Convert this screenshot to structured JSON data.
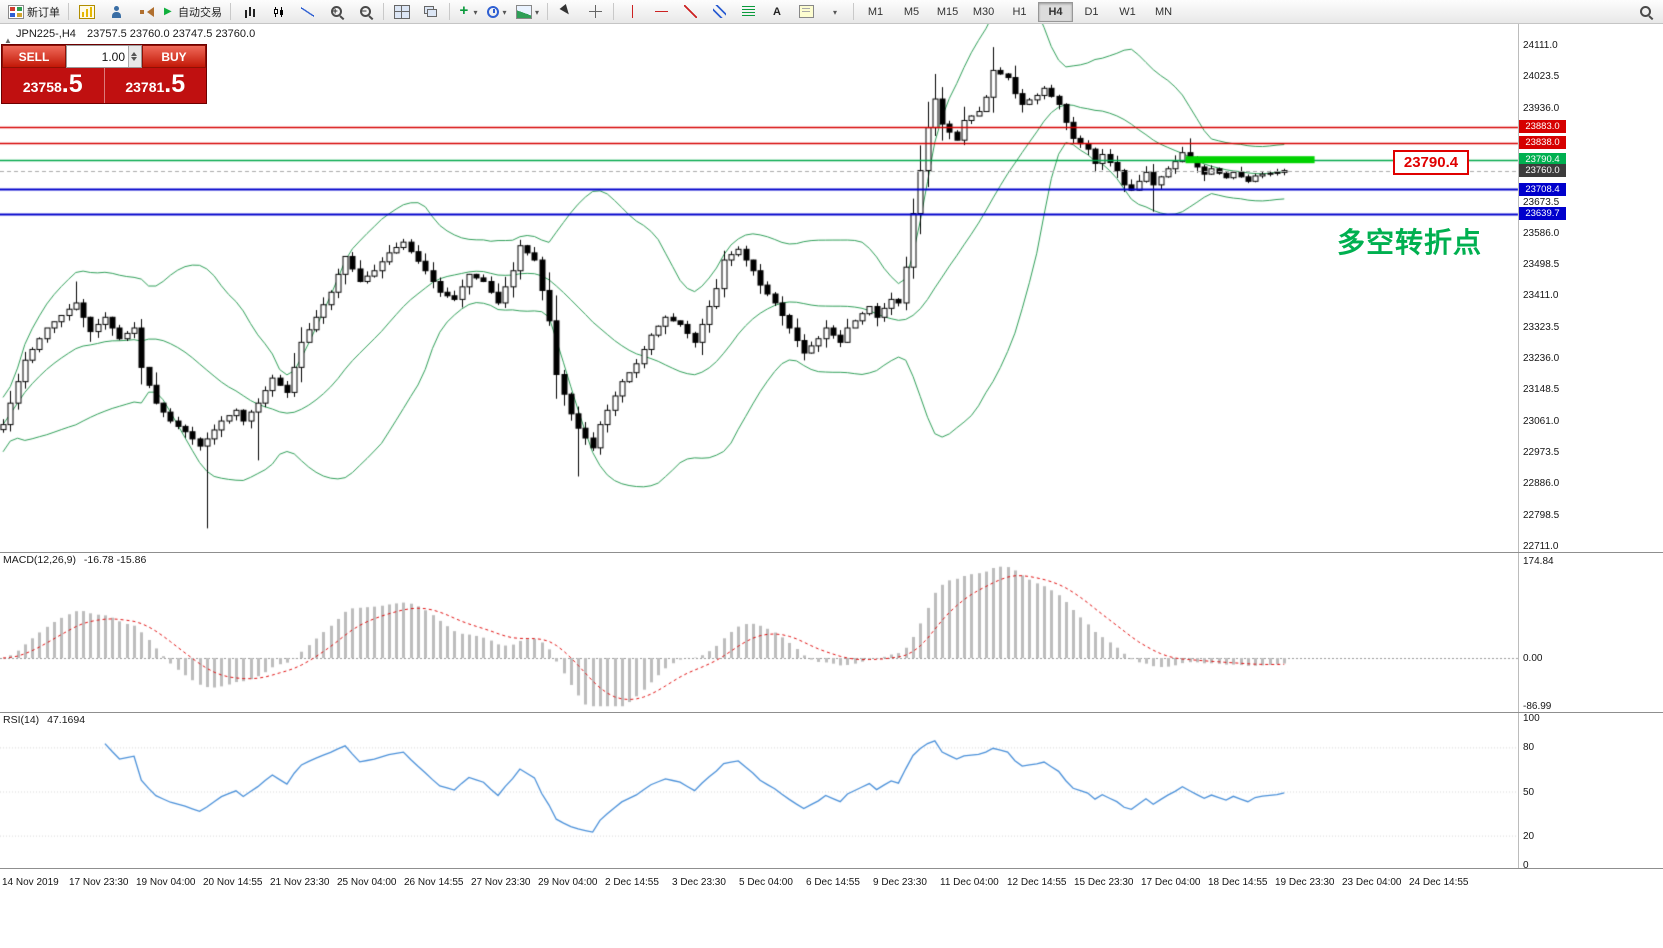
{
  "toolbar": {
    "new_order_label": "新订单",
    "autotrading_label": "自动交易",
    "text_tool_label": "A",
    "timeframes": [
      "M1",
      "M5",
      "M15",
      "M30",
      "H1",
      "H4",
      "D1",
      "W1",
      "MN"
    ],
    "active_timeframe": "H4"
  },
  "chart_header": {
    "symbol": "JPN225-,H4",
    "ohlc": "23757.5 23760.0 23747.5 23760.0"
  },
  "trade_panel": {
    "sell_label": "SELL",
    "buy_label": "BUY",
    "volume": "1.00",
    "sell_price_main": "23758",
    "sell_price_pips": ".5",
    "buy_price_main": "23781",
    "buy_price_pips": ".5"
  },
  "annotation": {
    "text": "多空转折点",
    "color": "#00b050"
  },
  "floating_label": {
    "text": "23790.4"
  },
  "macd": {
    "label": "MACD(12,26,9)",
    "values": "-16.78 -15.86",
    "axis_ticks": [
      "174.84",
      "0.00",
      "-86.99"
    ]
  },
  "rsi": {
    "label": "RSI(14)",
    "value": "47.1694",
    "axis_ticks": [
      "100",
      "80",
      "50",
      "20",
      "0"
    ]
  },
  "icons": {
    "new-order-icon": "colored-grid",
    "chart-yellow-icon": "yellow-bar-chart",
    "person-icon": "person",
    "speaker-icon": "speaker",
    "play-icon": "▶",
    "bar-chart-icon": "ohlc-bars",
    "candlestick-chart-icon": "candles",
    "line-chart-icon": "zigzag-line",
    "zoom-in-icon": "magnifier-plus",
    "zoom-out-icon": "magnifier-minus",
    "tile-windows-icon": "tiles",
    "cascade-windows-icon": "cascade",
    "indicators-icon": "green-plus",
    "periods-icon": "blue-clock",
    "template-icon": "chart-picture",
    "cursor-icon": "pointer-arrow",
    "crosshair-icon": "cross",
    "vertical-line-icon": "|",
    "horizontal-line-icon": "—",
    "trendline-icon": "/",
    "channel-icon": "parallel-lines",
    "fibonacci-icon": "fibo-lines",
    "text-label-icon": "label-box",
    "dropdown-caret-icon": "▾",
    "search-icon": "magnifier",
    "one-click-toggle-icon": "▲"
  },
  "chart_data": {
    "type": "candlestick",
    "symbol": "JPN225-",
    "timeframe": "H4",
    "ohlc_current": {
      "open": 23757.5,
      "high": 23760.0,
      "low": 23747.5,
      "close": 23760.0
    },
    "y_axis_ticks": [
      "24111.0",
      "24023.5",
      "23936.0",
      "23673.5",
      "23586.0",
      "23498.5",
      "23411.0",
      "23323.5",
      "23236.0",
      "23148.5",
      "23061.0",
      "22973.5",
      "22886.0",
      "22798.5",
      "22711.0"
    ],
    "x_axis_ticks": [
      "14 Nov 2019",
      "17 Nov 23:30",
      "19 Nov 04:00",
      "20 Nov 14:55",
      "21 Nov 23:30",
      "25 Nov 04:00",
      "26 Nov 14:55",
      "27 Nov 23:30",
      "29 Nov 04:00",
      "2 Dec 14:55",
      "3 Dec 23:30",
      "5 Dec 04:00",
      "6 Dec 14:55",
      "9 Dec 23:30",
      "11 Dec 04:00",
      "12 Dec 14:55",
      "15 Dec 23:30",
      "17 Dec 04:00",
      "18 Dec 14:55",
      "19 Dec 23:30",
      "23 Dec 04:00",
      "24 Dec 14:55"
    ],
    "price_tags": [
      {
        "text": "23883.0",
        "price": 23883.0,
        "color": "#d60000"
      },
      {
        "text": "23838.0",
        "price": 23838.0,
        "color": "#d60000"
      },
      {
        "text": "23790.4",
        "price": 23790.4,
        "color": "#00b050"
      },
      {
        "text": "23760.0",
        "price": 23760.0,
        "color": "#3c3c3c"
      },
      {
        "text": "23708.4",
        "price": 23708.4,
        "color": "#0000cc"
      },
      {
        "text": "23639.7",
        "price": 23639.7,
        "color": "#0000cc"
      }
    ],
    "hlines": [
      {
        "price": 23883.0,
        "color": "#d60000",
        "style": "solid",
        "width": 1.5
      },
      {
        "price": 23838.0,
        "color": "#d60000",
        "style": "solid",
        "width": 1.5
      },
      {
        "price": 23790.4,
        "color": "#00a84a",
        "style": "solid",
        "width": 1.5
      },
      {
        "price": 23760.0,
        "color": "#aaaaaa",
        "style": "dash",
        "width": 1
      },
      {
        "price": 23708.4,
        "color": "#0000cc",
        "style": "solid",
        "width": 2
      },
      {
        "price": 23639.7,
        "color": "#0000cc",
        "style": "solid",
        "width": 2
      }
    ],
    "highlight_segment": {
      "price": 23790.4,
      "from_frac": 0.781,
      "to_frac": 0.866,
      "color": "#00d200"
    },
    "close_path": [
      [
        0,
        23050
      ],
      [
        3,
        23230
      ],
      [
        6,
        23320
      ],
      [
        10,
        23390
      ],
      [
        12,
        23310
      ],
      [
        14,
        23350
      ],
      [
        16,
        23290
      ],
      [
        18,
        23320
      ],
      [
        19,
        23210
      ],
      [
        21,
        23110
      ],
      [
        23,
        23060
      ],
      [
        25,
        23030
      ],
      [
        27,
        22990
      ],
      [
        28,
        23010
      ],
      [
        30,
        23060
      ],
      [
        32,
        23090
      ],
      [
        33,
        23060
      ],
      [
        35,
        23110
      ],
      [
        37,
        23180
      ],
      [
        39,
        23140
      ],
      [
        41,
        23280
      ],
      [
        43,
        23350
      ],
      [
        45,
        23420
      ],
      [
        47,
        23520
      ],
      [
        49,
        23450
      ],
      [
        51,
        23480
      ],
      [
        53,
        23530
      ],
      [
        55,
        23560
      ],
      [
        58,
        23480
      ],
      [
        60,
        23420
      ],
      [
        62,
        23400
      ],
      [
        64,
        23470
      ],
      [
        66,
        23450
      ],
      [
        68,
        23390
      ],
      [
        70,
        23480
      ],
      [
        71,
        23550
      ],
      [
        73,
        23510
      ],
      [
        75,
        23340
      ],
      [
        76,
        23190
      ],
      [
        78,
        23080
      ],
      [
        79,
        23040
      ],
      [
        81,
        22985
      ],
      [
        82,
        23050
      ],
      [
        84,
        23130
      ],
      [
        85,
        23170
      ],
      [
        87,
        23220
      ],
      [
        89,
        23300
      ],
      [
        91,
        23350
      ],
      [
        93,
        23330
      ],
      [
        95,
        23280
      ],
      [
        96,
        23330
      ],
      [
        98,
        23430
      ],
      [
        99,
        23510
      ],
      [
        101,
        23540
      ],
      [
        103,
        23480
      ],
      [
        104,
        23440
      ],
      [
        106,
        23390
      ],
      [
        108,
        23320
      ],
      [
        110,
        23250
      ],
      [
        112,
        23290
      ],
      [
        113,
        23320
      ],
      [
        115,
        23280
      ],
      [
        116,
        23320
      ],
      [
        118,
        23360
      ],
      [
        119,
        23380
      ],
      [
        120,
        23350
      ],
      [
        122,
        23400
      ],
      [
        123,
        23390
      ],
      [
        124,
        23490
      ],
      [
        125,
        23640
      ],
      [
        126,
        23760
      ],
      [
        127,
        23880
      ],
      [
        128,
        23960
      ],
      [
        129,
        23890
      ],
      [
        131,
        23845
      ],
      [
        132,
        23900
      ],
      [
        134,
        23925
      ],
      [
        135,
        23965
      ],
      [
        136,
        24040
      ],
      [
        138,
        24020
      ],
      [
        139,
        23975
      ],
      [
        140,
        23945
      ],
      [
        142,
        23970
      ],
      [
        143,
        23990
      ],
      [
        145,
        23945
      ],
      [
        146,
        23895
      ],
      [
        147,
        23850
      ],
      [
        149,
        23820
      ],
      [
        150,
        23780
      ],
      [
        151,
        23805
      ],
      [
        153,
        23760
      ],
      [
        154,
        23720
      ],
      [
        155,
        23705
      ],
      [
        157,
        23755
      ],
      [
        158,
        23720
      ],
      [
        160,
        23765
      ],
      [
        161,
        23785
      ],
      [
        162,
        23810
      ],
      [
        164,
        23770
      ],
      [
        165,
        23750
      ],
      [
        166,
        23765
      ],
      [
        168,
        23740
      ],
      [
        169,
        23755
      ],
      [
        171,
        23730
      ],
      [
        172,
        23745
      ],
      [
        173,
        23750
      ],
      [
        175,
        23755
      ],
      [
        176,
        23760
      ]
    ],
    "high_spikes": [
      [
        10,
        23450
      ],
      [
        128,
        24030
      ],
      [
        136,
        24105
      ],
      [
        163,
        23850
      ]
    ],
    "low_spikes": [
      [
        28,
        22760
      ],
      [
        35,
        22950
      ],
      [
        79,
        22905
      ],
      [
        158,
        23645
      ]
    ],
    "indicators": {
      "bollinger": {
        "period": 20,
        "deviation": 2,
        "color": "#2e9e57"
      },
      "macd": {
        "fast": 12,
        "slow": 26,
        "signal": 9,
        "histogram_color": "#bdbdbd",
        "signal_color": "#e01010",
        "range": [
          -86.99,
          174.84
        ]
      },
      "rsi": {
        "period": 14,
        "color": "#4a90d9",
        "levels": [
          20,
          50,
          80
        ]
      }
    }
  }
}
